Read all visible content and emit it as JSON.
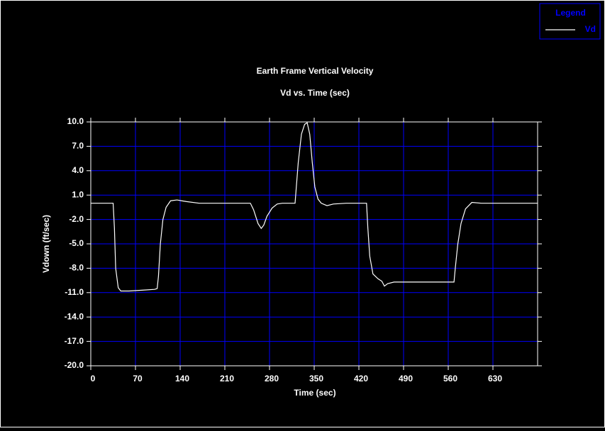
{
  "chart_data": {
    "type": "line",
    "title": "Earth Frame Vertical Velocity",
    "subtitle": "Vd vs. Time (sec)",
    "x_label": "Time (sec)",
    "y_label": "Vdown (ft/sec)",
    "legend_title": "Legend",
    "legend_position": "top-right",
    "grid": true,
    "grid_color": "#0000ff",
    "x": [
      0,
      35,
      37,
      39,
      43,
      47,
      60,
      80,
      100,
      104,
      106,
      109,
      113,
      118,
      125,
      135,
      150,
      170,
      250,
      255,
      262,
      267,
      271,
      276,
      284,
      292,
      300,
      320,
      322,
      325,
      330,
      335,
      339,
      343,
      347,
      351,
      356,
      361,
      370,
      380,
      400,
      432,
      434,
      437,
      442,
      450,
      456,
      460,
      465,
      475,
      500,
      540,
      569,
      571,
      575,
      580,
      587,
      597,
      612,
      700
    ],
    "series": [
      {
        "name": "Vd",
        "color": "#ffffff",
        "values": [
          0,
          0,
          -3,
          -8,
          -10.4,
          -10.8,
          -10.8,
          -10.7,
          -10.6,
          -10.5,
          -9,
          -5,
          -2,
          -0.5,
          0.3,
          0.4,
          0.2,
          0,
          0,
          -0.8,
          -2.5,
          -3.1,
          -2.7,
          -1.6,
          -0.6,
          -0.1,
          0,
          0,
          2,
          5,
          8.5,
          9.7,
          9.9,
          8.5,
          5,
          2,
          0.5,
          0,
          -0.3,
          -0.1,
          0,
          0,
          -3,
          -6.5,
          -8.7,
          -9.3,
          -9.6,
          -10.2,
          -9.9,
          -9.7,
          -9.7,
          -9.7,
          -9.7,
          -8,
          -5,
          -2.5,
          -0.7,
          0.1,
          0,
          0
        ]
      }
    ],
    "xlim": [
      0,
      700
    ],
    "xticks": [
      0,
      70,
      140,
      210,
      280,
      350,
      420,
      490,
      560,
      630
    ],
    "ylim": [
      -20,
      10
    ],
    "yticks": [
      {
        "value": 10,
        "label": "10.0"
      },
      {
        "value": 7,
        "label": "7.0"
      },
      {
        "value": 4,
        "label": "4.0"
      },
      {
        "value": 1,
        "label": "1.0"
      },
      {
        "value": -2,
        "label": "-2.0"
      },
      {
        "value": -5,
        "label": "-5.0"
      },
      {
        "value": -8,
        "label": "-8.0"
      },
      {
        "value": -11,
        "label": "-11.0"
      },
      {
        "value": -14,
        "label": "-14.0"
      },
      {
        "value": -17,
        "label": "-17.0"
      },
      {
        "value": -20,
        "label": "-20.0"
      }
    ]
  }
}
